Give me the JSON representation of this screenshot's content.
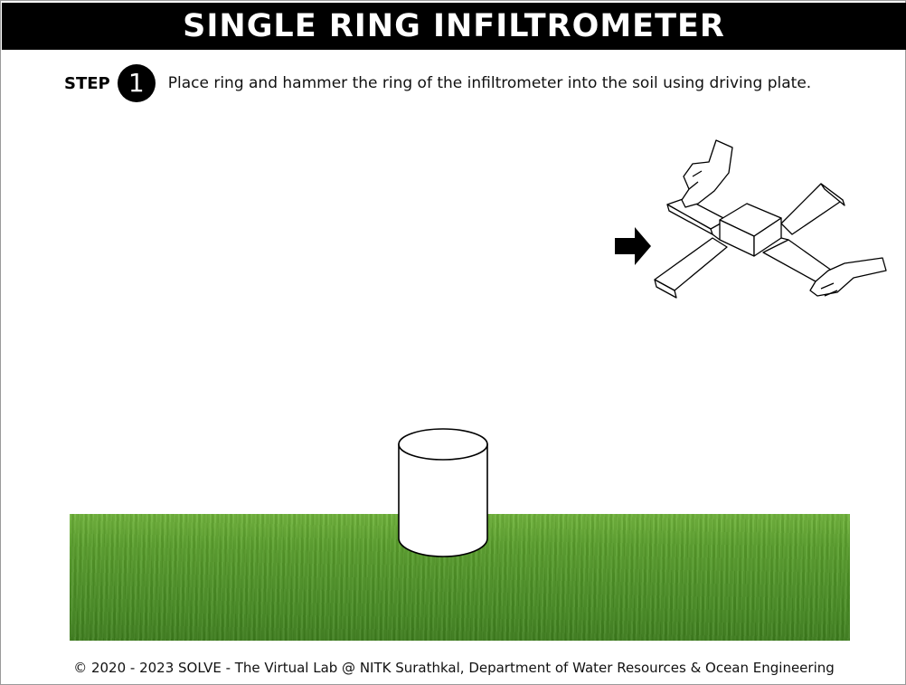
{
  "header": {
    "title": "SINGLE RING INFILTROMETER"
  },
  "step": {
    "label": "STEP",
    "number": "1",
    "instruction": "Place ring and hammer the ring of the infiltrometer into the soil using driving plate."
  },
  "scene": {
    "ground": "grass-field",
    "ring": "infiltrometer-ring-icon",
    "tool": "driving-plate-with-hands-icon",
    "pointer": "arrow-right-icon",
    "colors": {
      "grass_light": "#6fb43a",
      "grass_dark": "#3f7f1e",
      "title_bg": "#000000",
      "title_fg": "#ffffff"
    }
  },
  "footer": {
    "copyright": "© 2020 - 2023 SOLVE - The Virtual Lab @ NITK Surathkal, Department of Water Resources & Ocean Engineering"
  }
}
